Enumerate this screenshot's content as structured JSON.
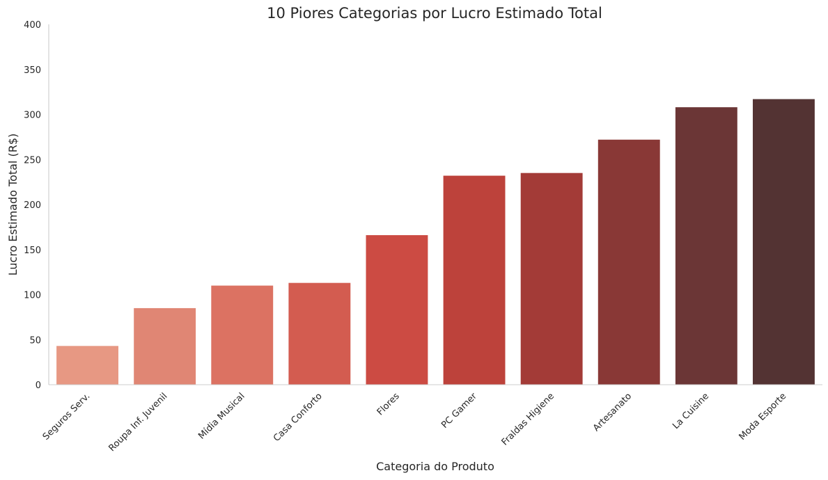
{
  "chart_data": {
    "type": "bar",
    "title": "10 Piores Categorias por Lucro Estimado Total",
    "xlabel": "Categoria do Produto",
    "ylabel": "Lucro Estimado Total (R$)",
    "ylim": [
      0,
      400
    ],
    "yticks": [
      0,
      50,
      100,
      150,
      200,
      250,
      300,
      350,
      400
    ],
    "grid": false,
    "categories": [
      "Seguros Serv.",
      "Roupa Inf. Juvenil",
      "Mídia Musical",
      "Casa Conforto",
      "Flores",
      "PC Gamer",
      "Fraldas Higiene",
      "Artesanato",
      "La Cuisine",
      "Moda Esporte"
    ],
    "values": [
      43,
      85,
      110,
      113,
      166,
      232,
      235,
      272,
      308,
      317
    ],
    "colors": [
      "#e79883",
      "#e08674",
      "#dc7262",
      "#d35c50",
      "#cc4b43",
      "#bd423b",
      "#a33b37",
      "#893836",
      "#6b3636",
      "#533333"
    ]
  }
}
